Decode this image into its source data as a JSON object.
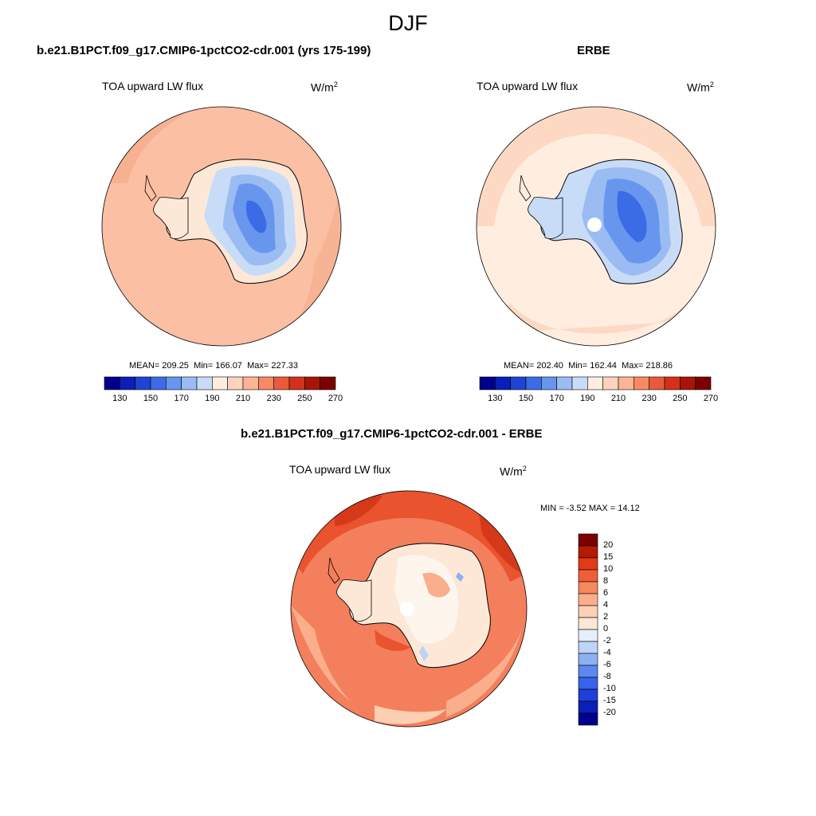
{
  "figure": {
    "season": "DJF"
  },
  "colors": {
    "abs_levels": [
      "#00008c",
      "#0a1fb8",
      "#1f44d1",
      "#3c6be6",
      "#6896ee",
      "#9bbcf2",
      "#c8dcf8",
      "#ffeee0",
      "#fdd3bd",
      "#fcb496",
      "#f78a65",
      "#ea5a3a",
      "#d4301c",
      "#a81508",
      "#7c0000"
    ],
    "diff_levels": [
      "#00008c",
      "#0a1fb8",
      "#1e3fd8",
      "#3862ec",
      "#5c88f0",
      "#8db0f5",
      "#bcd4f9",
      "#e5effb",
      "#fde8d8",
      "#fdcfb3",
      "#fbae8c",
      "#f78860",
      "#f05e37",
      "#e13a14",
      "#b51b02",
      "#7c0000"
    ]
  },
  "panels": [
    {
      "title": "b.e21.B1PCT.f09_g17.CMIP6-1pctCO2-cdr.001 (yrs 175-199)",
      "subtitle": "TOA upward LW flux",
      "units": "W/m",
      "units_exp": "2",
      "stats": {
        "mean_label": "MEAN=",
        "mean": "209.25",
        "min_label": "Min=",
        "min": "166.07",
        "max_label": "Max=",
        "max": "227.33"
      },
      "colorbar_ticks": [
        "130",
        "150",
        "170",
        "190",
        "210",
        "230",
        "250",
        "270"
      ]
    },
    {
      "title": "ERBE",
      "subtitle": "TOA upward LW flux",
      "units": "W/m",
      "units_exp": "2",
      "stats": {
        "mean_label": "MEAN=",
        "mean": "202.40",
        "min_label": "Min=",
        "min": "162.44",
        "max_label": "Max=",
        "max": "218.86"
      },
      "colorbar_ticks": [
        "130",
        "150",
        "170",
        "190",
        "210",
        "230",
        "250",
        "270"
      ]
    },
    {
      "title": "b.e21.B1PCT.f09_g17.CMIP6-1pctCO2-cdr.001 - ERBE",
      "subtitle": "TOA upward LW flux",
      "units": "W/m",
      "units_exp": "2",
      "minmax": "MIN =  -3.52 MAX =  14.12",
      "colorbar_ticks": [
        "20",
        "15",
        "10",
        "8",
        "6",
        "4",
        "2",
        "0",
        "-2",
        "-4",
        "-6",
        "-8",
        "-10",
        "-15",
        "-20"
      ]
    }
  ]
}
